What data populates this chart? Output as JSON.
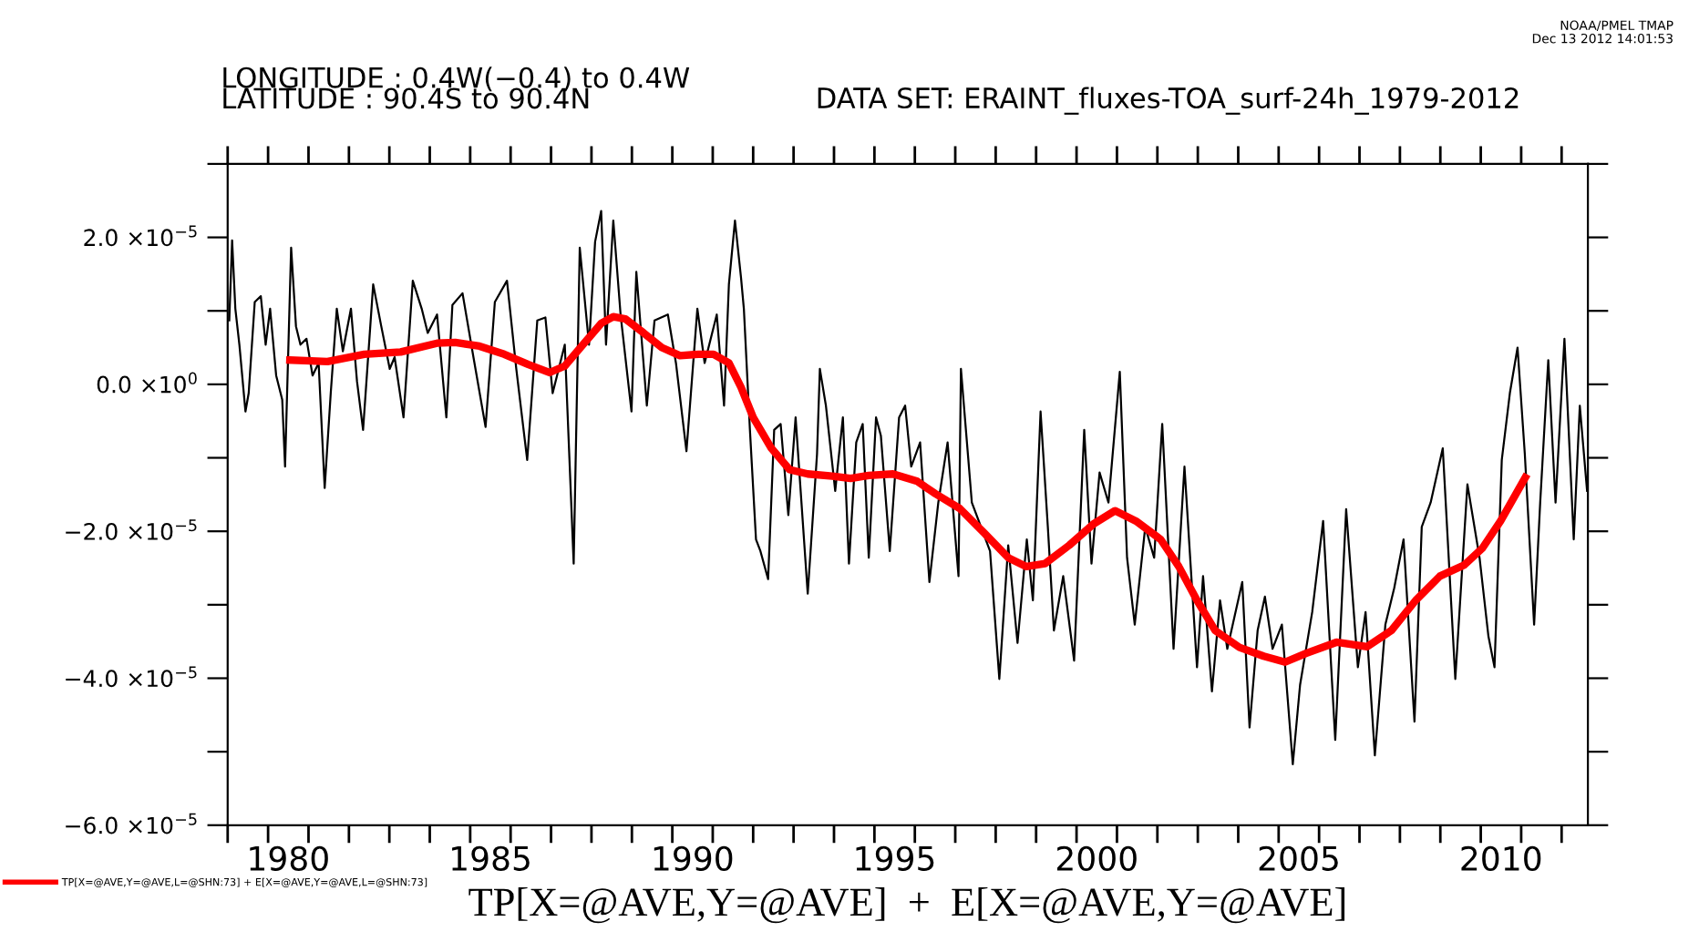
{
  "chart_data": {
    "type": "line",
    "xlabel": "TP[X=@AVE,Y=@AVE]  +  E[X=@AVE,Y=@AVE]",
    "annotations": [
      "LONGITUDE : 0.4W(−0.4) to 0.4W",
      "LATITUDE : 90.4S to 90.4N",
      "DATA SET: ERAINT_fluxes-TOA_surf-24h_1979-2012",
      "NOAA/PMEL TMAP",
      "Dec 13 2012 14:01:53"
    ],
    "xlim": [
      1979.0,
      2012.65
    ],
    "xticks": [
      {
        "value": 1979,
        "label": null
      },
      {
        "value": 1980,
        "label": null
      },
      {
        "value": 1981,
        "label": null
      },
      {
        "value": 1982,
        "label": null
      },
      {
        "value": 1983,
        "label": null
      },
      {
        "value": 1984,
        "label": null
      },
      {
        "value": 1985,
        "label": null
      },
      {
        "value": 1986,
        "label": null
      },
      {
        "value": 1987,
        "label": null
      },
      {
        "value": 1988,
        "label": null
      },
      {
        "value": 1989,
        "label": null
      },
      {
        "value": 1990,
        "label": null
      },
      {
        "value": 1991,
        "label": null
      },
      {
        "value": 1992,
        "label": null
      },
      {
        "value": 1993,
        "label": null
      },
      {
        "value": 1994,
        "label": null
      },
      {
        "value": 1995,
        "label": null
      },
      {
        "value": 1996,
        "label": null
      },
      {
        "value": 1997,
        "label": null
      },
      {
        "value": 1998,
        "label": null
      },
      {
        "value": 1999,
        "label": null
      },
      {
        "value": 2000,
        "label": null
      },
      {
        "value": 2001,
        "label": null
      },
      {
        "value": 2002,
        "label": null
      },
      {
        "value": 2003,
        "label": null
      },
      {
        "value": 2004,
        "label": null
      },
      {
        "value": 2005,
        "label": null
      },
      {
        "value": 2006,
        "label": null
      },
      {
        "value": 2007,
        "label": null
      },
      {
        "value": 2008,
        "label": null
      },
      {
        "value": 2009,
        "label": null
      },
      {
        "value": 2010,
        "label": null
      },
      {
        "value": 2011,
        "label": null
      },
      {
        "value": 2012,
        "label": null
      },
      {
        "value": 1980.5,
        "label": "1980"
      },
      {
        "value": 1985.5,
        "label": "1985"
      },
      {
        "value": 1990.5,
        "label": "1990"
      },
      {
        "value": 1995.5,
        "label": "1995"
      },
      {
        "value": 2000.5,
        "label": "2000"
      },
      {
        "value": 2005.5,
        "label": "2005"
      },
      {
        "value": 2010.5,
        "label": "2010"
      }
    ],
    "ylim": [
      -6e-05,
      3e-05
    ],
    "yticks": [
      {
        "value": -6e-05,
        "label": "−6.0 ×10$^{−5}$"
      },
      {
        "value": -5e-05,
        "label": null
      },
      {
        "value": -4e-05,
        "label": "−4.0 ×10$^{−5}$"
      },
      {
        "value": -3e-05,
        "label": null
      },
      {
        "value": -2e-05,
        "label": "−2.0 ×10$^{−5}$"
      },
      {
        "value": -1e-05,
        "label": null
      },
      {
        "value": 0,
        "label": "0.0 ×10$^{0}$"
      },
      {
        "value": 1e-05,
        "label": null
      },
      {
        "value": 2e-05,
        "label": "2.0 ×10$^{−5}$"
      },
      {
        "value": 3e-05,
        "label": null
      }
    ],
    "grid": false,
    "legend": "bottom left",
    "series": [
      {
        "color": "#000000",
        "x": [
          1979.04,
          1979.11,
          1979.19,
          1979.29,
          1979.44,
          1979.52,
          1979.67,
          1979.82,
          1979.94,
          1980.05,
          1980.2,
          1980.35,
          1980.42,
          1980.57,
          1980.69,
          1980.8,
          1980.95,
          1981.1,
          1981.25,
          1981.4,
          1981.55,
          1981.7,
          1981.85,
          1982.05,
          1982.2,
          1982.35,
          1982.6,
          1982.8,
          1983.01,
          1983.13,
          1983.35,
          1983.58,
          1983.8,
          1983.95,
          1984.18,
          1984.41,
          1984.56,
          1984.81,
          1985.08,
          1985.38,
          1985.61,
          1985.91,
          1986.14,
          1986.41,
          1986.66,
          1986.86,
          1987.04,
          1987.34,
          1987.56,
          1987.71,
          1987.94,
          1988.09,
          1988.24,
          1988.36,
          1988.54,
          1988.72,
          1988.99,
          1989.11,
          1989.37,
          1989.56,
          1989.89,
          1990.09,
          1990.35,
          1990.62,
          1990.8,
          1991.1,
          1991.28,
          1991.4,
          1991.55,
          1991.7,
          1991.77,
          1991.92,
          1992.07,
          1992.18,
          1992.37,
          1992.52,
          1992.68,
          1992.87,
          1993.05,
          1993.35,
          1993.58,
          1993.65,
          1993.8,
          1994.03,
          1994.22,
          1994.37,
          1994.55,
          1994.71,
          1994.86,
          1995.04,
          1995.16,
          1995.38,
          1995.61,
          1995.76,
          1995.91,
          1996.13,
          1996.36,
          1996.58,
          1996.81,
          1997.08,
          1997.14,
          1997.41,
          1997.86,
          1998.09,
          1998.31,
          1998.54,
          1998.77,
          1998.92,
          1999.11,
          1999.29,
          1999.44,
          1999.67,
          1999.94,
          2000.19,
          2000.37,
          2000.57,
          2000.79,
          2001.07,
          2001.25,
          2001.44,
          2001.7,
          2001.92,
          2002.12,
          2002.4,
          2002.67,
          2002.98,
          2003.13,
          2003.35,
          2003.55,
          2003.73,
          2004.1,
          2004.28,
          2004.48,
          2004.66,
          2004.85,
          2005.08,
          2005.35,
          2005.53,
          2005.83,
          2006.1,
          2006.4,
          2006.67,
          2006.96,
          2007.15,
          2007.38,
          2007.64,
          2007.86,
          2008.09,
          2008.36,
          2008.54,
          2008.76,
          2009.06,
          2009.37,
          2009.67,
          2009.97,
          2010.19,
          2010.34,
          2010.52,
          2010.72,
          2010.91,
          2011.09,
          2011.32,
          2011.47,
          2011.67,
          2011.85,
          2012.07,
          2012.3,
          2012.45,
          2012.63
        ],
        "values": [
          8.7e-06,
          1.96e-05,
          1.03e-05,
          5.4e-06,
          -3.7e-06,
          -1.2e-06,
          1.12e-05,
          1.2e-05,
          5.4e-06,
          1.03e-05,
          1.2e-06,
          -2.1e-06,
          -1.12e-05,
          1.86e-05,
          7.9e-06,
          5.4e-06,
          6.2e-06,
          1.2e-06,
          2.9e-06,
          -1.41e-05,
          -1.2e-06,
          1.03e-05,
          4.5e-06,
          1.03e-05,
          4e-07,
          -6.2e-06,
          1.36e-05,
          7.9e-06,
          2.1e-06,
          3.7e-06,
          -4.5e-06,
          1.41e-05,
          1.03e-05,
          7e-06,
          9.5e-06,
          -4.5e-06,
          1.08e-05,
          1.24e-05,
          3.7e-06,
          -5.8e-06,
          1.12e-05,
          1.41e-05,
          2.1e-06,
          -1.03e-05,
          8.7e-06,
          9.1e-06,
          -1.2e-06,
          5.4e-06,
          -2.44e-05,
          1.86e-05,
          5.4e-06,
          1.94e-05,
          2.36e-05,
          5.4e-06,
          2.23e-05,
          9.5e-06,
          -3.7e-06,
          1.53e-05,
          -2.9e-06,
          8.7e-06,
          9.5e-06,
          2.9e-06,
          -9.1e-06,
          1.03e-05,
          2.9e-06,
          9.5e-06,
          -2.9e-06,
          1.36e-05,
          2.23e-05,
          1.45e-05,
          1.03e-05,
          -6.2e-06,
          -2.11e-05,
          -2.27e-05,
          -2.65e-05,
          -6.2e-06,
          -5.4e-06,
          -1.78e-05,
          -4.5e-06,
          -2.85e-05,
          -9.5e-06,
          2.1e-06,
          -2.9e-06,
          -1.45e-05,
          -4.5e-06,
          -2.44e-05,
          -7.9e-06,
          -5.4e-06,
          -2.36e-05,
          -4.5e-06,
          -7e-06,
          -2.27e-05,
          -4.5e-06,
          -2.9e-06,
          -1.12e-05,
          -7.9e-06,
          -2.69e-05,
          -1.61e-05,
          -7.9e-06,
          -2.61e-05,
          2.1e-06,
          -1.61e-05,
          -2.27e-05,
          -4.01e-05,
          -2.19e-05,
          -3.52e-05,
          -2.11e-05,
          -2.94e-05,
          -3.7e-06,
          -1.94e-05,
          -3.35e-05,
          -2.61e-05,
          -3.76e-05,
          -6.2e-06,
          -2.44e-05,
          -1.2e-05,
          -1.61e-05,
          1.7e-06,
          -2.36e-05,
          -3.27e-05,
          -1.94e-05,
          -2.36e-05,
          -5.4e-06,
          -3.6e-05,
          -1.12e-05,
          -3.85e-05,
          -2.61e-05,
          -4.18e-05,
          -2.94e-05,
          -3.6e-05,
          -2.69e-05,
          -4.67e-05,
          -3.35e-05,
          -2.89e-05,
          -3.6e-05,
          -3.27e-05,
          -5.17e-05,
          -4.09e-05,
          -3.1e-05,
          -1.86e-05,
          -4.84e-05,
          -1.7e-05,
          -3.85e-05,
          -3.1e-05,
          -5.05e-05,
          -3.27e-05,
          -2.77e-05,
          -2.11e-05,
          -4.59e-05,
          -1.94e-05,
          -1.61e-05,
          -8.7e-06,
          -4.01e-05,
          -1.36e-05,
          -2.36e-05,
          -3.43e-05,
          -3.85e-05,
          -1.03e-05,
          -1.2e-06,
          5e-06,
          -9.5e-06,
          -3.27e-05,
          -1.61e-05,
          3.3e-06,
          -1.61e-05,
          6.2e-06,
          -2.11e-05,
          -2.9e-06,
          -1.45e-05
        ]
      },
      {
        "name": "TP[X=@AVE,Y=@AVE,L=@SHN:73] + E[X=@AVE,Y=@AVE,L=@SHN:73]",
        "color": "#ff0000",
        "x": [
          1980.54,
          1981.47,
          1982.38,
          1983.28,
          1984.18,
          1984.63,
          1985.23,
          1985.84,
          1986.44,
          1986.96,
          1987.34,
          1987.79,
          1988.24,
          1988.54,
          1988.84,
          1989.29,
          1989.74,
          1990.19,
          1990.65,
          1991.02,
          1991.4,
          1991.7,
          1992.0,
          1992.45,
          1992.9,
          1993.35,
          1993.96,
          1994.41,
          1994.86,
          1995.46,
          1996.06,
          1996.51,
          1997.11,
          1997.71,
          1998.31,
          1998.76,
          1999.22,
          1999.82,
          2000.42,
          2000.95,
          2001.47,
          2002.08,
          2002.53,
          2002.98,
          2003.43,
          2004.03,
          2004.63,
          2005.16,
          2005.68,
          2006.43,
          2007.19,
          2007.79,
          2008.39,
          2008.99,
          2009.59,
          2010.04,
          2010.49,
          2011.1
        ],
        "values": [
          3.3e-06,
          3.1e-06,
          4.1e-06,
          4.4e-06,
          5.6e-06,
          5.7e-06,
          5.2e-06,
          4.1e-06,
          2.7e-06,
          1.6e-06,
          2.5e-06,
          5.4e-06,
          8.3e-06,
          9.2e-06,
          8.9e-06,
          7e-06,
          5e-06,
          3.9e-06,
          4.1e-06,
          4.1e-06,
          2.9e-06,
          -4e-07,
          -4.5e-06,
          -8.7e-06,
          -1.16e-05,
          -1.22e-05,
          -1.25e-05,
          -1.28e-05,
          -1.24e-05,
          -1.22e-05,
          -1.32e-05,
          -1.49e-05,
          -1.69e-05,
          -2.02e-05,
          -2.36e-05,
          -2.48e-05,
          -2.44e-05,
          -2.19e-05,
          -1.9e-05,
          -1.72e-05,
          -1.86e-05,
          -2.11e-05,
          -2.48e-05,
          -2.94e-05,
          -3.35e-05,
          -3.58e-05,
          -3.7e-05,
          -3.78e-05,
          -3.66e-05,
          -3.51e-05,
          -3.57e-05,
          -3.35e-05,
          -2.94e-05,
          -2.61e-05,
          -2.46e-05,
          -2.23e-05,
          -1.86e-05,
          -1.27e-05
        ]
      }
    ]
  }
}
